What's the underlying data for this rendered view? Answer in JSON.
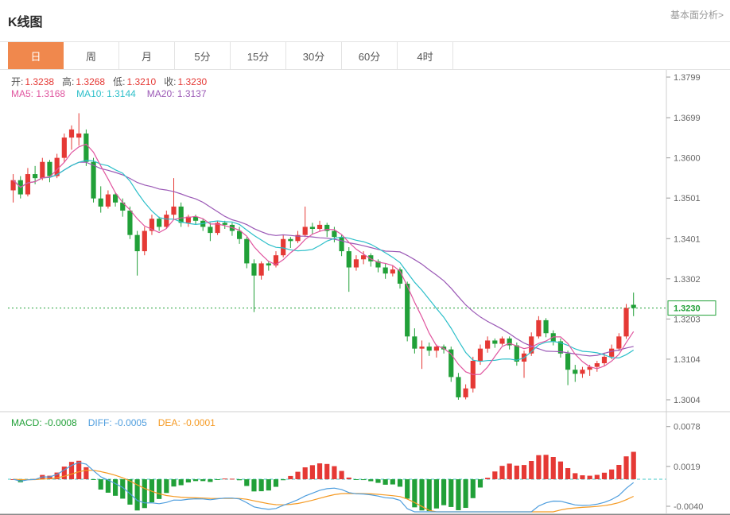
{
  "header": {
    "title": "K线图",
    "link": "基本面分析>"
  },
  "tabs": [
    {
      "label": "日",
      "active": true
    },
    {
      "label": "周",
      "active": false
    },
    {
      "label": "月",
      "active": false
    },
    {
      "label": "5分",
      "active": false
    },
    {
      "label": "15分",
      "active": false
    },
    {
      "label": "30分",
      "active": false
    },
    {
      "label": "60分",
      "active": false
    },
    {
      "label": "4时",
      "active": false
    }
  ],
  "legend": {
    "ohlc": [
      {
        "label": "开:",
        "value": "1.3238"
      },
      {
        "label": "高:",
        "value": "1.3268"
      },
      {
        "label": "低:",
        "value": "1.3210"
      },
      {
        "label": "收:",
        "value": "1.3230"
      }
    ],
    "ma": [
      {
        "label": "MA5:",
        "value": "1.3168"
      },
      {
        "label": "MA10:",
        "value": "1.3144"
      },
      {
        "label": "MA20:",
        "value": "1.3137"
      }
    ],
    "macd": [
      {
        "label": "MACD:",
        "value": "-0.0008"
      },
      {
        "label": "DIFF:",
        "value": "-0.0005"
      },
      {
        "label": "DEA:",
        "value": "-0.0001"
      }
    ]
  },
  "chart_data": {
    "type": "candlestick",
    "indicator_panel": "macd",
    "title": "K线图",
    "timeframe": "日",
    "y_axis": {
      "labels": [
        "1.3799",
        "1.3699",
        "1.3600",
        "1.3501",
        "1.3401",
        "1.3302",
        "1.3203",
        "1.3104",
        "1.3004"
      ],
      "range": [
        1.3004,
        1.3799
      ]
    },
    "macd_axis": {
      "labels": [
        "0.0078",
        "0.0019",
        "-0.0040"
      ],
      "values": [
        0.0078,
        0.0019,
        -0.004
      ]
    },
    "current_price": {
      "value": 1.323,
      "label": "1.3230"
    },
    "ohlc": {
      "open": 1.3238,
      "high": 1.3268,
      "low": 1.321,
      "close": 1.323
    },
    "ma": {
      "ma5": 1.3168,
      "ma10": 1.3144,
      "ma20": 1.3137
    },
    "macd": {
      "macd": -0.0008,
      "diff": -0.0005,
      "dea": -0.0001
    },
    "colors": {
      "up": "#e53935",
      "down": "#21a038",
      "ma5": "#e0559f",
      "ma10": "#2cbfc9",
      "ma20": "#9b59b6",
      "diff": "#4f9ede",
      "dea": "#f59a23",
      "zero_line": "#45c8c8",
      "price_line": "#21a038",
      "active_tab": "#f0884d"
    },
    "candles": [
      [
        1.352,
        1.356,
        1.349,
        1.3545
      ],
      [
        1.3545,
        1.3555,
        1.35,
        1.351
      ],
      [
        1.351,
        1.3575,
        1.3505,
        1.356
      ],
      [
        1.356,
        1.358,
        1.3535,
        1.355
      ],
      [
        1.355,
        1.36,
        1.3545,
        1.359
      ],
      [
        1.359,
        1.3595,
        1.354,
        1.3555
      ],
      [
        1.3555,
        1.361,
        1.355,
        1.36
      ],
      [
        1.36,
        1.366,
        1.359,
        1.365
      ],
      [
        1.365,
        1.368,
        1.362,
        1.367
      ],
      [
        1.365,
        1.371,
        1.363,
        1.366
      ],
      [
        1.366,
        1.367,
        1.358,
        1.359
      ],
      [
        1.359,
        1.36,
        1.349,
        1.35
      ],
      [
        1.35,
        1.353,
        1.3465,
        1.348
      ],
      [
        1.348,
        1.352,
        1.3475,
        1.351
      ],
      [
        1.351,
        1.3515,
        1.348,
        1.349
      ],
      [
        1.349,
        1.35,
        1.3455,
        1.347
      ],
      [
        1.347,
        1.348,
        1.34,
        1.341
      ],
      [
        1.341,
        1.342,
        1.331,
        1.337
      ],
      [
        1.337,
        1.343,
        1.336,
        1.342
      ],
      [
        1.342,
        1.346,
        1.341,
        1.345
      ],
      [
        1.345,
        1.3455,
        1.342,
        1.343
      ],
      [
        1.343,
        1.347,
        1.3425,
        1.346
      ],
      [
        1.346,
        1.355,
        1.345,
        1.348
      ],
      [
        1.348,
        1.349,
        1.343,
        1.344
      ],
      [
        1.344,
        1.346,
        1.343,
        1.3455
      ],
      [
        1.3455,
        1.346,
        1.3435,
        1.3445
      ],
      [
        1.3445,
        1.345,
        1.342,
        1.343
      ],
      [
        1.343,
        1.344,
        1.3395,
        1.3415
      ],
      [
        1.3415,
        1.3445,
        1.341,
        1.344
      ],
      [
        1.344,
        1.3445,
        1.3425,
        1.3435
      ],
      [
        1.3435,
        1.344,
        1.3408,
        1.342
      ],
      [
        1.342,
        1.343,
        1.3388,
        1.34
      ],
      [
        1.34,
        1.3405,
        1.3328,
        1.334
      ],
      [
        1.334,
        1.335,
        1.322,
        1.331
      ],
      [
        1.331,
        1.3345,
        1.33,
        1.334
      ],
      [
        1.334,
        1.3345,
        1.3322,
        1.3335
      ],
      [
        1.3335,
        1.337,
        1.333,
        1.336
      ],
      [
        1.336,
        1.341,
        1.3355,
        1.34
      ],
      [
        1.34,
        1.3405,
        1.3378,
        1.3395
      ],
      [
        1.3395,
        1.342,
        1.339,
        1.341
      ],
      [
        1.341,
        1.348,
        1.3405,
        1.343
      ],
      [
        1.343,
        1.344,
        1.3412,
        1.3425
      ],
      [
        1.3425,
        1.3445,
        1.3418,
        1.3435
      ],
      [
        1.3435,
        1.344,
        1.3405,
        1.342
      ],
      [
        1.342,
        1.343,
        1.3392,
        1.3405
      ],
      [
        1.3405,
        1.341,
        1.3358,
        1.337
      ],
      [
        1.337,
        1.338,
        1.327,
        1.333
      ],
      [
        1.333,
        1.336,
        1.3322,
        1.335
      ],
      [
        1.335,
        1.337,
        1.3338,
        1.336
      ],
      [
        1.336,
        1.3365,
        1.3332,
        1.3345
      ],
      [
        1.3345,
        1.335,
        1.3318,
        1.333
      ],
      [
        1.333,
        1.334,
        1.3302,
        1.3315
      ],
      [
        1.3315,
        1.3335,
        1.3308,
        1.3325
      ],
      [
        1.3325,
        1.333,
        1.3278,
        1.329
      ],
      [
        1.329,
        1.3295,
        1.3148,
        1.316
      ],
      [
        1.316,
        1.318,
        1.3118,
        1.313
      ],
      [
        1.313,
        1.315,
        1.308,
        1.3135
      ],
      [
        1.3135,
        1.3145,
        1.3112,
        1.3125
      ],
      [
        1.3125,
        1.314,
        1.3108,
        1.3135
      ],
      [
        1.3135,
        1.314,
        1.3118,
        1.3128
      ],
      [
        1.3128,
        1.3135,
        1.3048,
        1.306
      ],
      [
        1.306,
        1.307,
        1.3004,
        1.301
      ],
      [
        1.301,
        1.3042,
        1.3005,
        1.3032
      ],
      [
        1.3032,
        1.311,
        1.3022,
        1.31
      ],
      [
        1.31,
        1.314,
        1.309,
        1.313
      ],
      [
        1.313,
        1.316,
        1.312,
        1.315
      ],
      [
        1.315,
        1.3155,
        1.3132,
        1.3142
      ],
      [
        1.3142,
        1.316,
        1.3138,
        1.3155
      ],
      [
        1.3155,
        1.316,
        1.3128,
        1.3138
      ],
      [
        1.3138,
        1.3145,
        1.3088,
        1.3098
      ],
      [
        1.3098,
        1.3125,
        1.3058,
        1.3118
      ],
      [
        1.3118,
        1.317,
        1.3112,
        1.316
      ],
      [
        1.316,
        1.321,
        1.3155,
        1.32
      ],
      [
        1.32,
        1.3205,
        1.3158,
        1.3168
      ],
      [
        1.3168,
        1.3175,
        1.3138,
        1.3148
      ],
      [
        1.3148,
        1.3155,
        1.3108,
        1.3118
      ],
      [
        1.3118,
        1.3125,
        1.304,
        1.3078
      ],
      [
        1.3078,
        1.309,
        1.3048,
        1.3068
      ],
      [
        1.3068,
        1.3085,
        1.3058,
        1.3078
      ],
      [
        1.3078,
        1.309,
        1.3063,
        1.3085
      ],
      [
        1.3085,
        1.31,
        1.3073,
        1.3094
      ],
      [
        1.3094,
        1.312,
        1.3088,
        1.311
      ],
      [
        1.311,
        1.314,
        1.3104,
        1.313
      ],
      [
        1.313,
        1.3168,
        1.3124,
        1.316
      ],
      [
        1.316,
        1.324,
        1.3154,
        1.323
      ],
      [
        1.3238,
        1.3268,
        1.321,
        1.323
      ]
    ]
  }
}
